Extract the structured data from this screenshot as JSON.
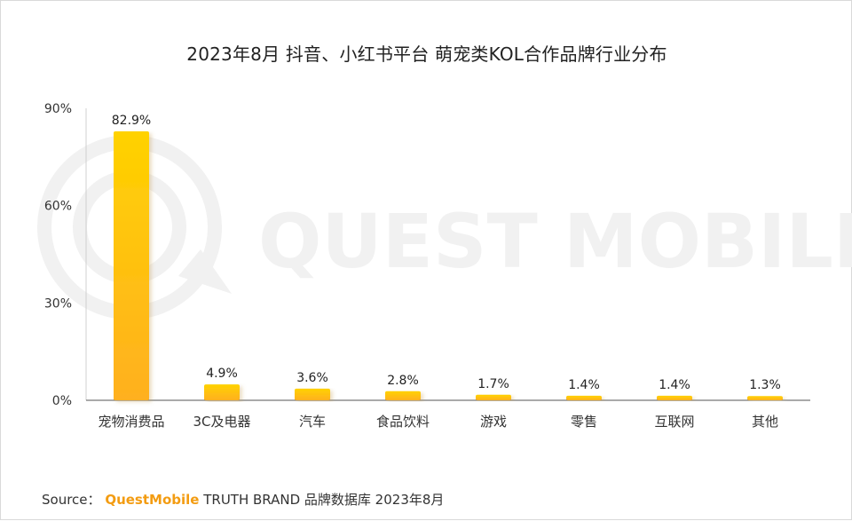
{
  "title": "2023年8月 抖音、小红书平台 萌宠类KOL合作品牌行业分布",
  "watermark": "QUEST MOBILE",
  "source": {
    "prefix": "Source：",
    "brand": "QuestMobile",
    "text": "TRUTH BRAND 品牌数据库 2023年8月"
  },
  "colors": {
    "bar_top": "#ffd200",
    "bar_bottom": "#ffb020",
    "watermark": "#f1f1f1",
    "brand": "#f39c12"
  },
  "chart_data": {
    "type": "bar",
    "title": "2023年8月 抖音、小红书平台 萌宠类KOL合作品牌行业分布",
    "xlabel": "",
    "ylabel": "",
    "ylim": [
      0,
      90
    ],
    "yticks": [
      0,
      30,
      60,
      90
    ],
    "ytick_labels": [
      "0%",
      "30%",
      "60%",
      "90%"
    ],
    "grid": false,
    "categories": [
      "宠物消费品",
      "3C及电器",
      "汽车",
      "食品饮料",
      "游戏",
      "零售",
      "互联网",
      "其他"
    ],
    "values": [
      82.9,
      4.9,
      3.6,
      2.8,
      1.7,
      1.4,
      1.4,
      1.3
    ],
    "labels": [
      "82.9%",
      "4.9%",
      "3.6%",
      "2.8%",
      "1.7%",
      "1.4%",
      "1.4%",
      "1.3%"
    ]
  }
}
